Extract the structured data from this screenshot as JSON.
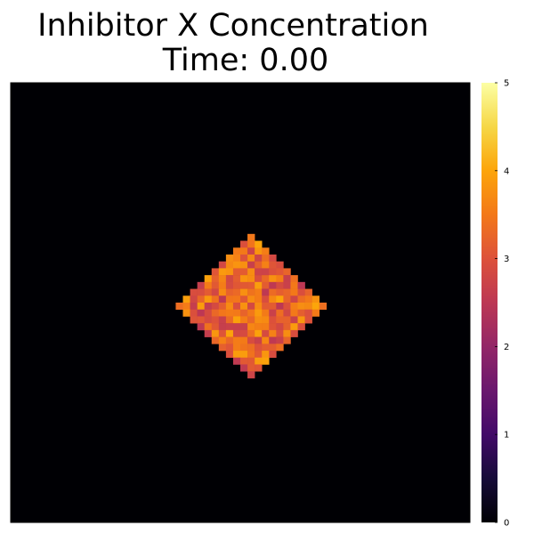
{
  "chart_data": {
    "type": "heatmap",
    "title_line1": "Inhibitor X Concentration",
    "title_line2": "Time: 0.00",
    "grid": {
      "rows": 64,
      "cols": 64
    },
    "region": {
      "shape": "diamond",
      "center_col": 33,
      "center_row": 32,
      "radius_cells": 10,
      "value_range": [
        2.5,
        4.0
      ],
      "background_value": 0
    },
    "colorbar": {
      "colormap": "inferno",
      "range": [
        0,
        5
      ],
      "ticks": [
        "0",
        "1",
        "2",
        "3",
        "4",
        "5"
      ],
      "tick_values": [
        0,
        1,
        2,
        3,
        4,
        5
      ]
    },
    "axes": {
      "xticks": "none",
      "yticks": "none"
    }
  }
}
